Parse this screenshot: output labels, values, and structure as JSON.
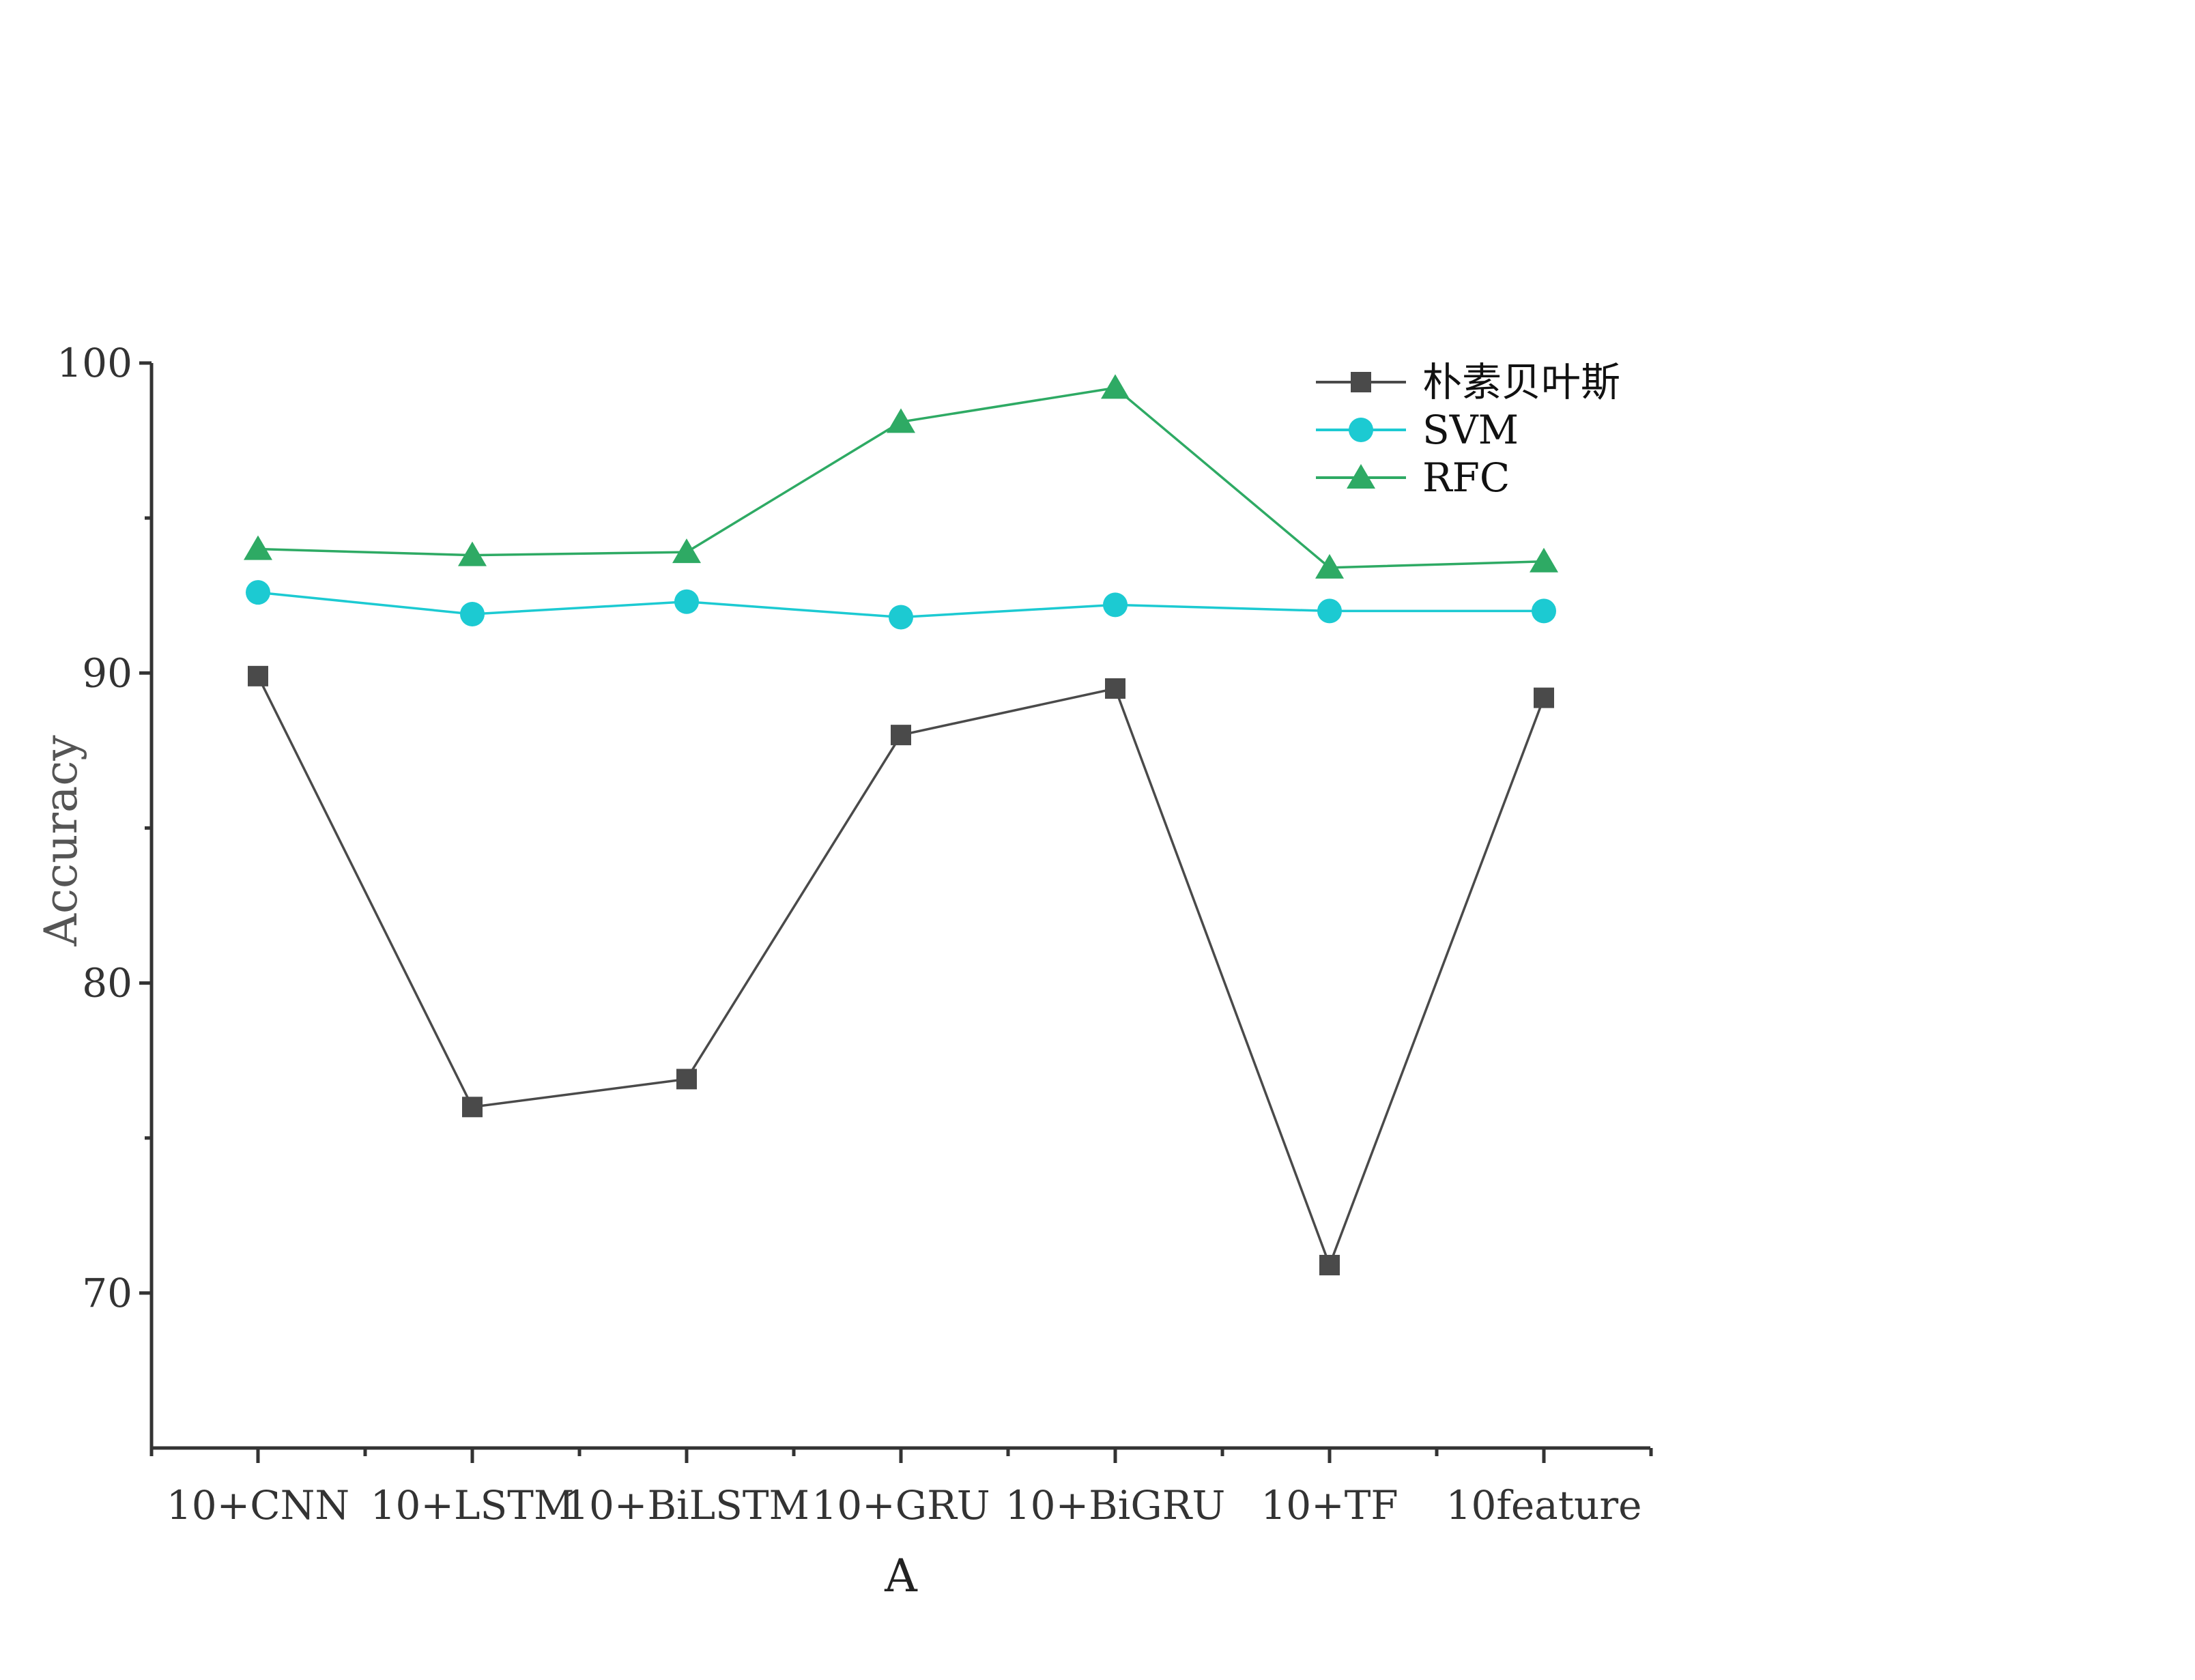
{
  "chart_data": {
    "type": "line",
    "title": "",
    "xlabel": "A",
    "ylabel": "Accuracy",
    "ylim": [
      65,
      100
    ],
    "yticks_labeled": [
      70,
      80,
      90,
      100
    ],
    "yticks_minor": [
      75,
      85,
      95
    ],
    "grid": false,
    "legend_position": "top-right",
    "categories": [
      "10+CNN",
      "10+LSTM",
      "10+BiLSTM",
      "10+GRU",
      "10+BiGRU",
      "10+TF",
      "10feature"
    ],
    "series": [
      {
        "name": "朴素贝叶斯",
        "marker": "square",
        "color": "#4a4a4a",
        "values": [
          89.9,
          76.0,
          76.9,
          88.0,
          89.5,
          70.9,
          89.2
        ]
      },
      {
        "name": "SVM",
        "marker": "circle",
        "color": "#1ccad2",
        "values": [
          92.6,
          91.9,
          92.3,
          91.8,
          92.2,
          92.0,
          92.0
        ]
      },
      {
        "name": "RFC",
        "marker": "triangle",
        "color": "#2eaa64",
        "values": [
          94.0,
          93.8,
          93.9,
          98.1,
          99.2,
          93.4,
          93.6
        ]
      }
    ]
  }
}
